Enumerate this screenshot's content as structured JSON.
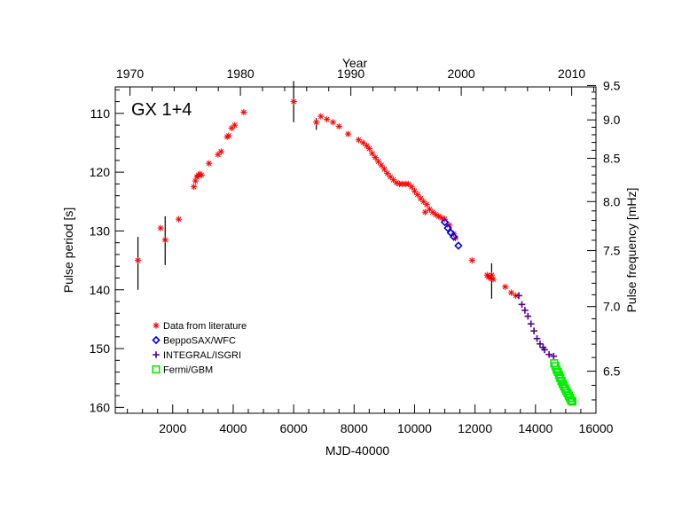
{
  "chart_data": {
    "type": "scatter",
    "title": "GX 1+4",
    "xlabel": "MJD-40000",
    "ylabel": "Pulse period [s]",
    "x2label": "Year",
    "y2label": "Pulse frequency [mHz]",
    "xlim": [
      100,
      16000
    ],
    "ylim": [
      161,
      105.5
    ],
    "y_reversed": true,
    "x_ticks": [
      2000,
      4000,
      6000,
      8000,
      10000,
      12000,
      14000,
      16000
    ],
    "y_ticks": [
      110,
      120,
      130,
      140,
      150,
      160
    ],
    "year_ticks": [
      {
        "label": "1970",
        "mjd": 587
      },
      {
        "label": "1980",
        "mjd": 4239
      },
      {
        "label": "1990",
        "mjd": 7892
      },
      {
        "label": "2000",
        "mjd": 11544
      },
      {
        "label": "2010",
        "mjd": 15197
      }
    ],
    "freq_ticks": [
      {
        "label": "6.5",
        "mhz": 6.5
      },
      {
        "label": "7.0",
        "mhz": 7.0
      },
      {
        "label": "7.5",
        "mhz": 7.5
      },
      {
        "label": "8.0",
        "mhz": 8.0
      },
      {
        "label": "8.5",
        "mhz": 8.5
      },
      {
        "label": "9.0",
        "mhz": 9.0
      },
      {
        "label": "9.5",
        "mhz": 9.5
      }
    ],
    "series": [
      {
        "name": "Data from literature",
        "marker": "asterisk",
        "color": "#ff0000",
        "points": [
          [
            850,
            135
          ],
          [
            1600,
            129.5
          ],
          [
            1750,
            131.5
          ],
          [
            2200,
            128
          ],
          [
            2700,
            122.5
          ],
          [
            2750,
            121.5
          ],
          [
            2800,
            120.8
          ],
          [
            2850,
            120.5
          ],
          [
            2900,
            120.3
          ],
          [
            2950,
            120.5
          ],
          [
            3200,
            118.5
          ],
          [
            3500,
            117
          ],
          [
            3600,
            116.5
          ],
          [
            3800,
            114
          ],
          [
            3850,
            113.8
          ],
          [
            3950,
            112.5
          ],
          [
            4050,
            112
          ],
          [
            4350,
            109.8
          ],
          [
            6000,
            108
          ],
          [
            6750,
            111.5
          ],
          [
            6900,
            110.5
          ],
          [
            7100,
            111
          ],
          [
            7300,
            111.5
          ],
          [
            7500,
            112.2
          ],
          [
            7800,
            113.5
          ],
          [
            8150,
            114.5
          ],
          [
            8300,
            115
          ],
          [
            8420,
            115.5
          ],
          [
            8500,
            116
          ],
          [
            8600,
            116.8
          ],
          [
            8700,
            117.5
          ],
          [
            8800,
            118.2
          ],
          [
            8900,
            118.8
          ],
          [
            9000,
            119.5
          ],
          [
            9100,
            120.2
          ],
          [
            9200,
            120.8
          ],
          [
            9300,
            121.3
          ],
          [
            9400,
            121.8
          ],
          [
            9500,
            122
          ],
          [
            9600,
            122
          ],
          [
            9700,
            122
          ],
          [
            9800,
            122
          ],
          [
            9900,
            122.5
          ],
          [
            10000,
            123.2
          ],
          [
            10100,
            123.8
          ],
          [
            10200,
            124.5
          ],
          [
            10300,
            125
          ],
          [
            10350,
            126.8
          ],
          [
            10400,
            125.5
          ],
          [
            10500,
            126.3
          ],
          [
            10600,
            126.8
          ],
          [
            10700,
            127.2
          ],
          [
            10800,
            127.5
          ],
          [
            10900,
            127.8
          ],
          [
            11000,
            128
          ],
          [
            11150,
            129
          ],
          [
            11300,
            130.5
          ],
          [
            11350,
            131.2
          ],
          [
            11900,
            135
          ],
          [
            12400,
            137.5
          ],
          [
            12450,
            137.8
          ],
          [
            12500,
            138
          ],
          [
            12550,
            137.5
          ],
          [
            12600,
            138.2
          ],
          [
            13000,
            139.5
          ],
          [
            13200,
            140.5
          ],
          [
            13350,
            141
          ]
        ]
      },
      {
        "name": "BeppoSAX/WFC",
        "marker": "diamond",
        "color": "#0000ee",
        "points": [
          [
            11000,
            128.5
          ],
          [
            11100,
            129.5
          ],
          [
            11200,
            130.3
          ],
          [
            11300,
            131
          ],
          [
            11450,
            132.5
          ]
        ]
      },
      {
        "name": "INTEGRAL/ISGRI",
        "marker": "plus",
        "color": "#55008b",
        "points": [
          [
            13450,
            141
          ],
          [
            13550,
            142.5
          ],
          [
            13650,
            143.5
          ],
          [
            13750,
            144.5
          ],
          [
            13850,
            145.8
          ],
          [
            13950,
            147
          ],
          [
            14050,
            148.3
          ],
          [
            14150,
            149.2
          ],
          [
            14250,
            149.8
          ],
          [
            14300,
            150.2
          ],
          [
            14450,
            151
          ],
          [
            14600,
            151.3
          ]
        ]
      },
      {
        "name": "Fermi/GBM",
        "marker": "square",
        "color": "#00ee00",
        "points": [
          [
            14620,
            152.5
          ],
          [
            14660,
            153
          ],
          [
            14700,
            153.6
          ],
          [
            14740,
            154
          ],
          [
            14780,
            154.5
          ],
          [
            14820,
            155
          ],
          [
            14860,
            155.5
          ],
          [
            14900,
            156
          ],
          [
            14940,
            156.4
          ],
          [
            14980,
            156.8
          ],
          [
            15020,
            157.2
          ],
          [
            15060,
            157.6
          ],
          [
            15100,
            158
          ],
          [
            15140,
            158.4
          ],
          [
            15180,
            158.8
          ],
          [
            15220,
            159
          ]
        ]
      }
    ],
    "error_bars": [
      [
        850,
        131,
        140
      ],
      [
        1750,
        127.5,
        135.8
      ],
      [
        6000,
        104.5,
        111.5
      ],
      [
        6750,
        110.8,
        112.8
      ],
      [
        12550,
        135.5,
        141.5
      ]
    ],
    "legend_position": "lower-left",
    "grid": false
  }
}
